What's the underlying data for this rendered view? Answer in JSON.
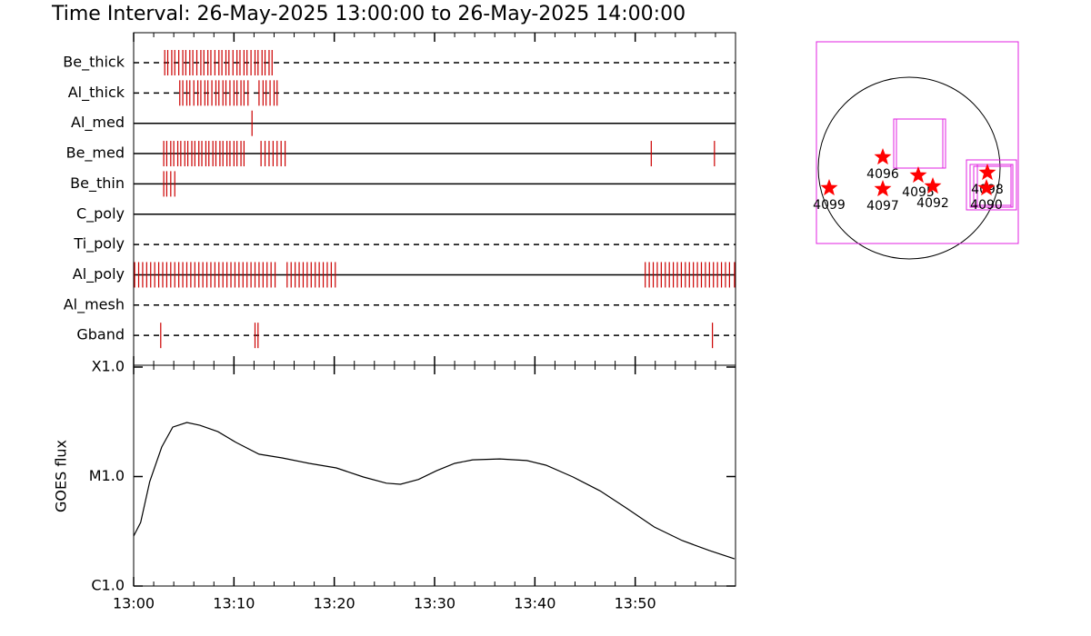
{
  "chart_data": [
    {
      "type": "timeline",
      "title": "Time Interval: 26-May-2025 13:00:00 to 26-May-2025 14:00:00",
      "xlim": [
        0,
        60
      ],
      "color": "#cc0000",
      "rows": [
        {
          "name": "Be_thick",
          "style": "dashed",
          "times": [
            3.1,
            3.4,
            3.8,
            4.1,
            4.5,
            4.9,
            5.2,
            5.6,
            5.9,
            6.3,
            6.7,
            7.0,
            7.4,
            7.7,
            8.1,
            8.5,
            8.8,
            9.2,
            9.5,
            9.9,
            10.3,
            10.6,
            11.0,
            11.3,
            11.7,
            12.1,
            12.4,
            12.8,
            13.1,
            13.5,
            13.8
          ]
        },
        {
          "name": "Al_thick",
          "style": "dashed",
          "times": [
            4.6,
            4.9,
            5.3,
            5.6,
            6.0,
            6.4,
            6.7,
            7.1,
            7.4,
            7.8,
            8.2,
            8.5,
            8.9,
            9.2,
            9.6,
            10.0,
            10.3,
            10.7,
            11.0,
            11.4,
            12.5,
            12.9,
            13.2,
            13.6,
            14.0,
            14.3
          ]
        },
        {
          "name": "Al_med",
          "style": "solid",
          "times": [
            11.8
          ]
        },
        {
          "name": "Be_med",
          "style": "solid",
          "times": [
            3.0,
            3.3,
            3.7,
            4.0,
            4.4,
            4.7,
            5.1,
            5.4,
            5.8,
            6.1,
            6.5,
            6.8,
            7.2,
            7.5,
            7.9,
            8.2,
            8.6,
            8.9,
            9.3,
            9.6,
            10.0,
            10.3,
            10.7,
            11.0,
            12.7,
            13.1,
            13.5,
            13.9,
            14.3,
            14.7,
            15.1,
            51.6,
            57.9
          ]
        },
        {
          "name": "Be_thin",
          "style": "solid",
          "times": [
            3.0,
            3.3,
            3.7,
            4.1
          ]
        },
        {
          "name": "C_poly",
          "style": "solid",
          "times": []
        },
        {
          "name": "Ti_poly",
          "style": "dashed",
          "times": []
        },
        {
          "name": "Al_poly",
          "style": "solid",
          "times": [
            0.1,
            0.5,
            0.9,
            1.3,
            1.7,
            2.1,
            2.5,
            2.9,
            3.3,
            3.7,
            4.1,
            4.5,
            4.9,
            5.3,
            5.7,
            6.1,
            6.5,
            6.9,
            7.3,
            7.7,
            8.1,
            8.5,
            8.9,
            9.3,
            9.7,
            10.1,
            10.5,
            10.9,
            11.3,
            11.7,
            12.1,
            12.5,
            12.9,
            13.3,
            13.7,
            14.1,
            15.3,
            15.7,
            16.1,
            16.5,
            16.9,
            17.3,
            17.7,
            18.1,
            18.5,
            18.9,
            19.3,
            19.7,
            20.1,
            51.0,
            51.4,
            51.8,
            52.2,
            52.6,
            53.0,
            53.4,
            53.8,
            54.2,
            54.6,
            55.0,
            55.4,
            55.8,
            56.2,
            56.6,
            57.0,
            57.4,
            57.8,
            58.2,
            58.6,
            59.0,
            59.4,
            59.9
          ]
        },
        {
          "name": "Al_mesh",
          "style": "dashed",
          "times": []
        },
        {
          "name": "Gband",
          "style": "dashed",
          "times": [
            2.7,
            12.1,
            12.4,
            57.7
          ]
        }
      ]
    },
    {
      "type": "line",
      "ylabel": "GOES flux",
      "log": true,
      "color": "#000000",
      "x": [
        0,
        0.7,
        1.6,
        2.8,
        3.9,
        5.3,
        6.6,
        8.4,
        10.2,
        12.5,
        14.8,
        17.5,
        20.2,
        22.9,
        25.2,
        26.6,
        28.4,
        30.2,
        32.0,
        33.8,
        36.5,
        39.2,
        41.1,
        43.8,
        46.5,
        49.2,
        51.9,
        54.7,
        57.4,
        59.9
      ],
      "values": [
        2.86e-06,
        3.81e-06,
        9e-06,
        1.86e-05,
        2.83e-05,
        3.12e-05,
        2.94e-05,
        2.57e-05,
        2.05e-05,
        1.6e-05,
        1.48e-05,
        1.32e-05,
        1.2e-05,
        9.9e-06,
        8.7e-06,
        8.5e-06,
        9.4e-06,
        1.13e-05,
        1.32e-05,
        1.42e-05,
        1.45e-05,
        1.4e-05,
        1.27e-05,
        9.9e-06,
        7.4e-06,
        5.1e-06,
        3.46e-06,
        2.6e-06,
        2.11e-06,
        1.77e-06
      ],
      "xlim": [
        0,
        60
      ],
      "xticks": [
        {
          "value": 0,
          "label": "13:00"
        },
        {
          "value": 10,
          "label": "13:10"
        },
        {
          "value": 20,
          "label": "13:20"
        },
        {
          "value": 30,
          "label": "13:30"
        },
        {
          "value": 40,
          "label": "13:40"
        },
        {
          "value": 50,
          "label": "13:50"
        }
      ],
      "xminor_step": 2,
      "ylim": [
        1e-06,
        0.0001
      ],
      "yticks": [
        {
          "value": 1e-06,
          "label": "C1.0"
        },
        {
          "value": 1e-05,
          "label": "M1.0"
        },
        {
          "value": 0.0001,
          "label": "X1.0"
        }
      ]
    }
  ],
  "map": {
    "regions": [
      "4099",
      "4096",
      "4097",
      "4095",
      "4092",
      "4098",
      "4090"
    ]
  }
}
